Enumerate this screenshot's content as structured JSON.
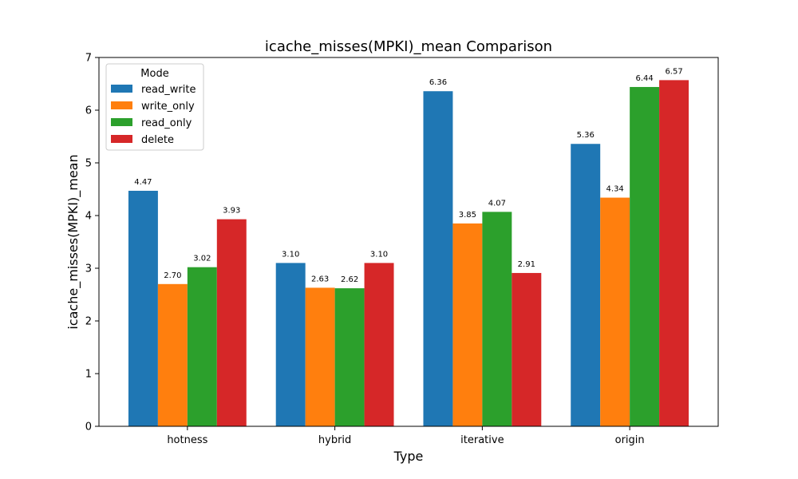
{
  "chart_data": {
    "type": "bar",
    "title": "icache_misses(MPKI)_mean Comparison",
    "xlabel": "Type",
    "ylabel": "icache_misses(MPKI)_mean",
    "categories": [
      "hotness",
      "hybrid",
      "iterative",
      "origin"
    ],
    "ylim": [
      0,
      7
    ],
    "yticks": [
      "0",
      "1",
      "2",
      "3",
      "4",
      "5",
      "6",
      "7"
    ],
    "grid": false,
    "legend": {
      "title": "Mode",
      "position": "top-left"
    },
    "series": [
      {
        "name": "read_write",
        "color": "#1f77b4",
        "values": [
          4.47,
          3.1,
          6.36,
          5.36
        ],
        "labels": [
          "4.47",
          "3.10",
          "6.36",
          "5.36"
        ]
      },
      {
        "name": "write_only",
        "color": "#ff7f0e",
        "values": [
          2.7,
          2.63,
          3.85,
          4.34
        ],
        "labels": [
          "2.70",
          "2.63",
          "3.85",
          "4.34"
        ]
      },
      {
        "name": "read_only",
        "color": "#2ca02c",
        "values": [
          3.02,
          2.62,
          4.07,
          6.44
        ],
        "labels": [
          "3.02",
          "2.62",
          "4.07",
          "6.44"
        ]
      },
      {
        "name": "delete",
        "color": "#d62728",
        "values": [
          3.93,
          3.1,
          2.91,
          6.57
        ],
        "labels": [
          "3.93",
          "3.10",
          "2.91",
          "6.57"
        ]
      }
    ]
  }
}
